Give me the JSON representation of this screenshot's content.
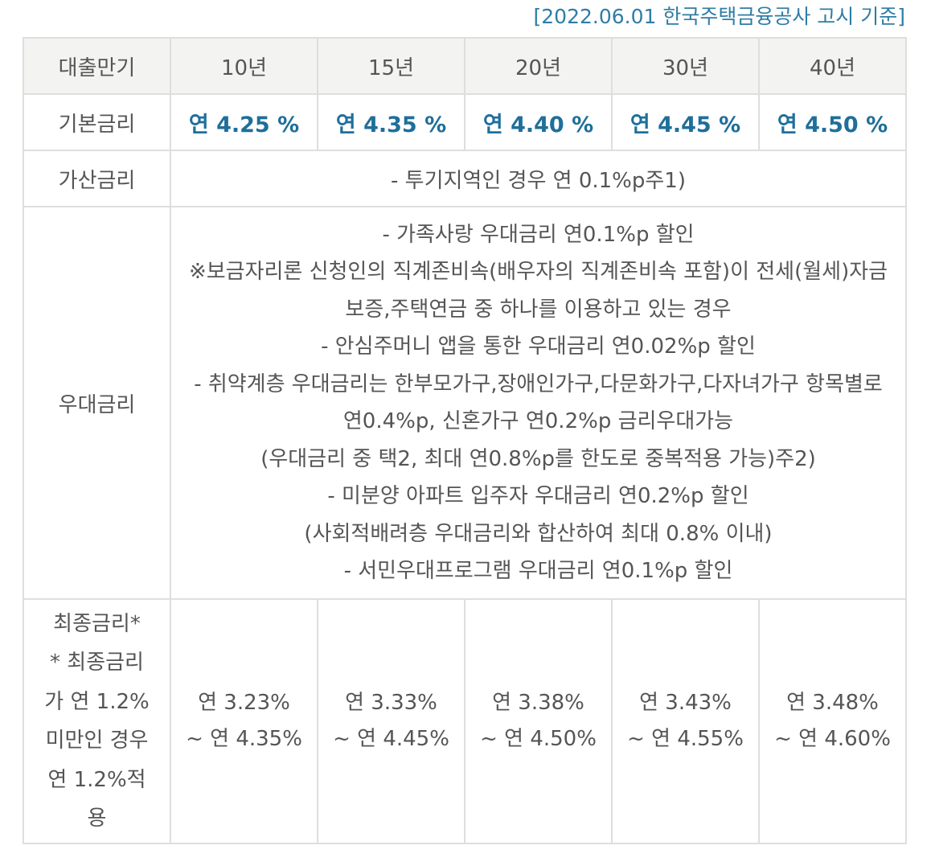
{
  "notice": "[2022.06.01 한국주택금융공사 고시 기준]",
  "header": {
    "label": "대출만기",
    "terms": [
      "10년",
      "15년",
      "20년",
      "30년",
      "40년"
    ]
  },
  "base_rate": {
    "label": "기본금리",
    "values": [
      "연 4.25 %",
      "연 4.35 %",
      "연 4.40 %",
      "연 4.45 %",
      "연 4.50 %"
    ]
  },
  "add_rate": {
    "label": "가산금리",
    "text": "- 투기지역인 경우 연 0.1%p주1)"
  },
  "pref_rate": {
    "label": "우대금리",
    "lines": [
      "- 가족사랑 우대금리 연0.1%p 할인",
      "※보금자리론 신청인의 직계존비속(배우자의 직계존비속 포함)이 전세(월세)자금보증,주택연금 중 하나를 이용하고 있는 경우",
      "- 안심주머니 앱을 통한 우대금리 연0.02%p 할인",
      "- 취약계층 우대금리는 한부모가구,장애인가구,다문화가구,다자녀가구 항목별로 연0.4%p, 신혼가구 연0.2%p 금리우대가능",
      "(우대금리 중 택2, 최대 연0.8%p를 한도로 중복적용 가능)주2)",
      "- 미분양 아파트 입주자 우대금리 연0.2%p 할인",
      "(사회적배려층 우대금리와 합산하여 최대 0.8% 이내)",
      "- 서민우대프로그램 우대금리 연0.1%p 할인"
    ]
  },
  "final_rate": {
    "label": "최종금리*",
    "note": "* 최종금리가 연 1.2% 미만인 경우 연 1.2%적용",
    "values": [
      {
        "min": "연 3.23%",
        "max": "~ 연 4.35%"
      },
      {
        "min": "연 3.33%",
        "max": "~ 연 4.45%"
      },
      {
        "min": "연 3.38%",
        "max": "~ 연 4.50%"
      },
      {
        "min": "연 3.43%",
        "max": "~ 연 4.55%"
      },
      {
        "min": "연 3.48%",
        "max": "~ 연 4.60%"
      }
    ]
  }
}
